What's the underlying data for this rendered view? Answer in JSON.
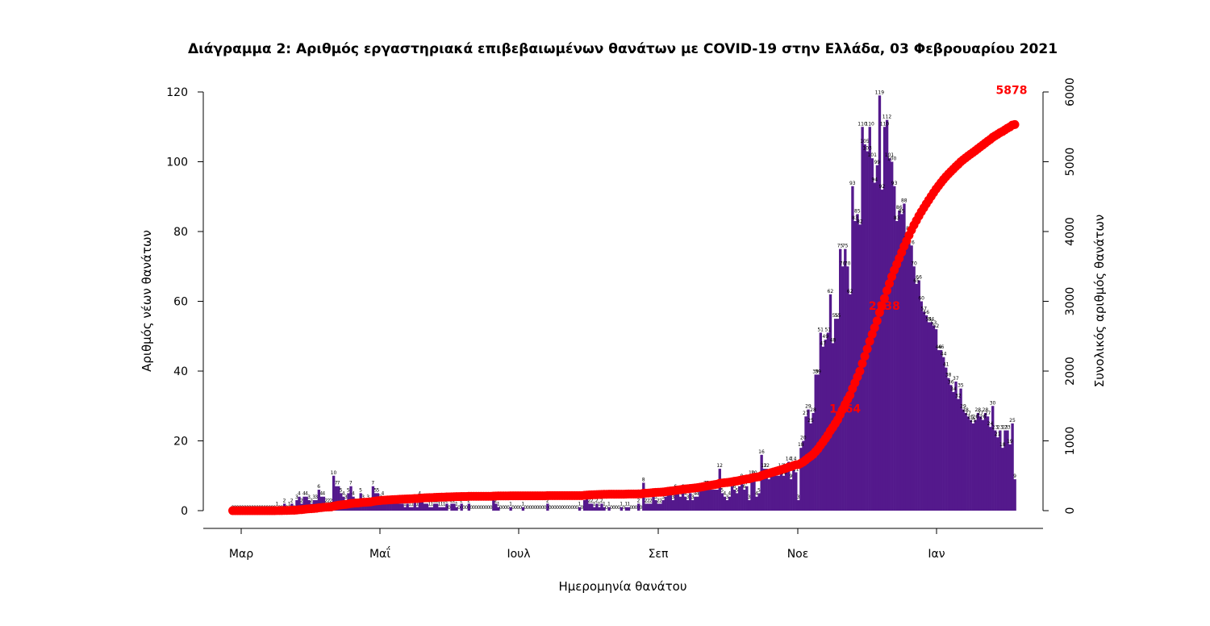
{
  "chart_data": {
    "type": "bar",
    "title": "Διάγραμμα 2: Αριθμός εργαστηριακά επιβεβαιωμένων θανάτων με COVID-19 στην Ελλάδα, 03 Φεβρουαρίου 2021",
    "xlabel": "Ημερομηνία θανάτου",
    "ylabel": "Αριθμός νέων θανάτων",
    "ylabel_right": "Συνολικός αριθμός θανάτων",
    "x_ticks": [
      "Μαρ",
      "Μαΐ",
      "Ιουλ",
      "Σεπ",
      "Νοε",
      "Ιαν"
    ],
    "y_ticks_left": [
      "0",
      "20",
      "40",
      "60",
      "80",
      "100",
      "120"
    ],
    "y_ticks_right": [
      "0",
      "1000",
      "2000",
      "3000",
      "4000",
      "5000",
      "6000"
    ],
    "ylim": [
      0,
      124
    ],
    "ylim_right": [
      0,
      6200
    ],
    "grid": false,
    "bar_color": "#54198c",
    "cumulative_color": "#ff0000",
    "x_start_date": "2020-02-26",
    "series": [
      {
        "name": "Αριθμός νέων θανάτων",
        "values": [
          0,
          0,
          0,
          0,
          0,
          0,
          0,
          0,
          0,
          0,
          0,
          0,
          0,
          0,
          0,
          0,
          0,
          0,
          1,
          0,
          0,
          2,
          0,
          1,
          2,
          0,
          3,
          4,
          2,
          4,
          4,
          3,
          2,
          3,
          3,
          6,
          4,
          4,
          2,
          2,
          2,
          10,
          7,
          7,
          5,
          4,
          3,
          5,
          7,
          4,
          2,
          2,
          5,
          3,
          2,
          3,
          2,
          7,
          5,
          5,
          3,
          4,
          2,
          2,
          2,
          2,
          2,
          2,
          2,
          2,
          1,
          2,
          1,
          1,
          3,
          1,
          4,
          3,
          2,
          2,
          1,
          1,
          2,
          2,
          1,
          1,
          1,
          2,
          0,
          2,
          2,
          1,
          0,
          2,
          0,
          0,
          2,
          0,
          0,
          0,
          0,
          0,
          0,
          0,
          0,
          0,
          3,
          2,
          1,
          0,
          0,
          0,
          0,
          1,
          0,
          0,
          0,
          0,
          1,
          0,
          0,
          0,
          0,
          0,
          0,
          0,
          0,
          0,
          2,
          0,
          0,
          0,
          0,
          0,
          0,
          0,
          0,
          0,
          0,
          0,
          0,
          1,
          0,
          3,
          4,
          2,
          2,
          1,
          2,
          1,
          2,
          1,
          0,
          1,
          0,
          0,
          0,
          0,
          1,
          0,
          1,
          1,
          0,
          0,
          0,
          2,
          0,
          8,
          2,
          2,
          2,
          4,
          3,
          2,
          2,
          3,
          4,
          5,
          5,
          3,
          6,
          5,
          4,
          6,
          4,
          3,
          5,
          3,
          4,
          4,
          6,
          6,
          7,
          7,
          6,
          6,
          6,
          6,
          12,
          5,
          4,
          3,
          4,
          7,
          6,
          5,
          7,
          9,
          6,
          7,
          3,
          10,
          10,
          4,
          5,
          16,
          12,
          12,
          9,
          10,
          10,
          10,
          10,
          12,
          10,
          12,
          14,
          9,
          14,
          11,
          3,
          18,
          20,
          27,
          29,
          25,
          28,
          39,
          39,
          51,
          47,
          49,
          51,
          62,
          48,
          55,
          55,
          75,
          70,
          75,
          70,
          62,
          93,
          83,
          85,
          82,
          110,
          105,
          103,
          110,
          101,
          94,
          99,
          119,
          92,
          110,
          112,
          101,
          100,
          93,
          83,
          86,
          85,
          88,
          77,
          80,
          76,
          70,
          65,
          66,
          60,
          57,
          56,
          54,
          54,
          53,
          52,
          46,
          46,
          44,
          41,
          38,
          36,
          34,
          37,
          32,
          35,
          29,
          28,
          27,
          26,
          25,
          26,
          28,
          27,
          26,
          28,
          27,
          24,
          30,
          23,
          21,
          23,
          18,
          23,
          23,
          19,
          25,
          9
        ],
        "labels": [
          "0",
          "0",
          "0",
          "0",
          "0",
          "0",
          "0",
          "0",
          "0",
          "0",
          "0",
          "0",
          "0",
          "0",
          "0",
          "0",
          "0",
          "0",
          "1",
          "0",
          "0",
          "2",
          "0",
          "1",
          "2",
          "0",
          "3",
          "4",
          "2",
          "4",
          "4",
          "3",
          "2",
          "3",
          "3",
          "6",
          "4",
          "4",
          "2",
          "2",
          "2",
          "10",
          "7",
          "7",
          "5",
          "4",
          "3",
          "5",
          "7",
          "4",
          "2",
          "2",
          "5",
          "3",
          "2",
          "3",
          "2",
          "7",
          "5",
          "5",
          "3",
          "4",
          "2",
          "2",
          "2",
          "2",
          "2",
          "2",
          "2",
          "2",
          "1",
          "2",
          "1",
          "1",
          "3",
          "1",
          "4",
          "3",
          "2",
          "2",
          "1",
          "1",
          "2",
          "2",
          "1",
          "1",
          "1",
          "2",
          "0",
          "2",
          "2",
          "1",
          "0",
          "2",
          "0",
          "0",
          "2",
          "0",
          "0",
          "0",
          "0",
          "0",
          "0",
          "0",
          "0",
          "0",
          "3",
          "2",
          "1",
          "0",
          "0",
          "0",
          "0",
          "1",
          "0",
          "0",
          "0",
          "0",
          "1",
          "0",
          "0",
          "0",
          "0",
          "0",
          "0",
          "0",
          "0",
          "0",
          "2",
          "0",
          "0",
          "0",
          "0",
          "0",
          "0",
          "0",
          "0",
          "0",
          "0",
          "0",
          "0",
          "1",
          "0",
          "3",
          "4",
          "2",
          "2",
          "1",
          "2",
          "1",
          "2",
          "1",
          "0",
          "1",
          "0",
          "0",
          "0",
          "0",
          "1",
          "0",
          "1",
          "1",
          "0",
          "0",
          "0",
          "2",
          "0",
          "8",
          "2",
          "2",
          "2",
          "4",
          "3",
          "2",
          "2",
          "3",
          "4",
          "5",
          "5",
          "3",
          "6",
          "5",
          "4",
          "6",
          "4",
          "3",
          "5",
          "3",
          "4",
          "4",
          "6",
          "6",
          "7",
          "7",
          "6",
          "6",
          "6",
          "6",
          "12",
          "5",
          "4",
          "3",
          "4",
          "7",
          "6",
          "5",
          "7",
          "9",
          "6",
          "7",
          "3",
          "10",
          "10",
          "4",
          "5",
          "16",
          "12",
          "12",
          "9",
          "10",
          "10",
          "10",
          "10",
          "12",
          "10",
          "12",
          "14",
          "9",
          "14",
          "11",
          "3",
          "18",
          "20",
          "27",
          "29",
          "25",
          "28",
          "39",
          "39",
          "51",
          "47",
          "49",
          "51",
          "62",
          "48",
          "55",
          "55",
          "75",
          "70",
          "75",
          "70",
          "62",
          "93",
          "83",
          "85",
          "82",
          "110",
          "105",
          "103",
          "110",
          "101",
          "94",
          "99",
          "119",
          "92",
          "110",
          "112",
          "101",
          "100",
          "93",
          "83",
          "86",
          "85",
          "88",
          "77",
          "80",
          "76",
          "70",
          "65",
          "66",
          "60",
          "57",
          "56",
          "54",
          "54",
          "53",
          "52",
          "46",
          "46",
          "44",
          "41",
          "38",
          "36",
          "34",
          "37",
          "32",
          "35",
          "29",
          "28",
          "27",
          "26",
          "25",
          "26",
          "28",
          "27",
          "26",
          "28",
          "27",
          "24",
          "30",
          "23",
          "21",
          "23",
          "18",
          "23",
          "23",
          "19",
          "25",
          "9"
        ]
      },
      {
        "name": "Συνολικός αριθμός θανάτων",
        "axis": "right",
        "derived_from": "cumulative sum of daily deaths",
        "annotations": [
          {
            "text": "1464",
            "value": 1464
          },
          {
            "text": "2938",
            "value": 2938
          },
          {
            "text": "5878",
            "value": 5878
          }
        ]
      }
    ]
  }
}
